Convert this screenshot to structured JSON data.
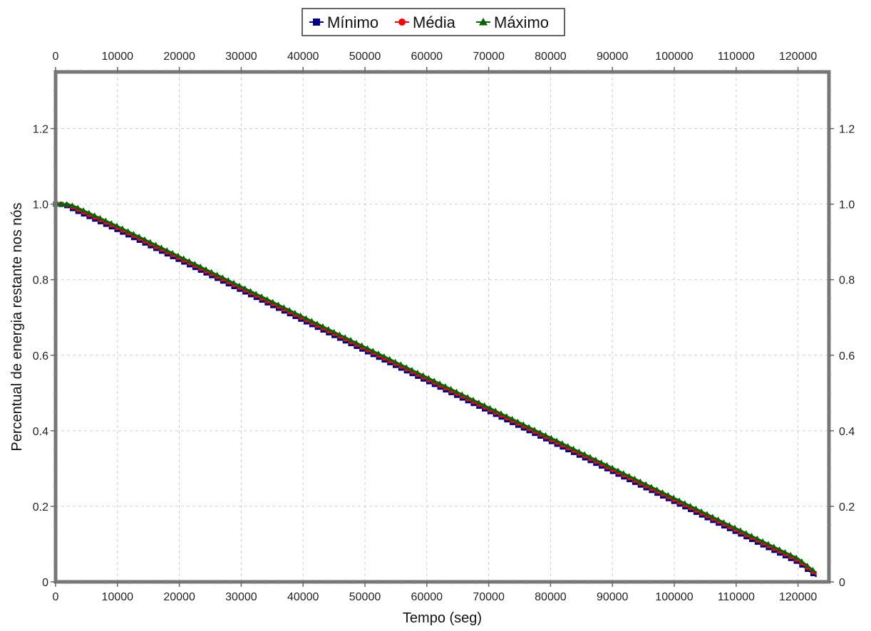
{
  "chart_data": {
    "type": "line",
    "title": "",
    "xlabel": "Tempo (seg)",
    "ylabel": "Percentual de energia restante nos nós",
    "xlim": [
      0,
      125000
    ],
    "ylim": [
      0,
      1.35
    ],
    "xticks": [
      0,
      10000,
      20000,
      30000,
      40000,
      50000,
      60000,
      70000,
      80000,
      90000,
      100000,
      110000,
      120000
    ],
    "xtick_labels": [
      "0",
      "10000",
      "20000",
      "30000",
      "40000",
      "50000",
      "60000",
      "70000",
      "80000",
      "90000",
      "100000",
      "110000",
      "120000"
    ],
    "yticks": [
      0,
      0.2,
      0.4,
      0.6,
      0.8,
      1.0,
      1.2
    ],
    "ytick_labels": [
      "0",
      "0.2",
      "0.4",
      "0.6",
      "0.8",
      "1.0",
      "1.2"
    ],
    "grid": true,
    "legend_position": "top-center",
    "x": [
      0,
      1000,
      2000,
      3000,
      5000,
      10000,
      20000,
      30000,
      40000,
      50000,
      60000,
      70000,
      80000,
      90000,
      100000,
      110000,
      120000,
      123000
    ],
    "series": [
      {
        "name": "Mínimo",
        "color": "#00008b",
        "marker": "square",
        "values": [
          1.0,
          0.999,
          0.995,
          0.985,
          0.97,
          0.932,
          0.852,
          0.772,
          0.692,
          0.612,
          0.532,
          0.452,
          0.372,
          0.292,
          0.212,
          0.132,
          0.052,
          0.014
        ]
      },
      {
        "name": "Média",
        "color": "#ff0000",
        "marker": "circle",
        "values": [
          1.0,
          1.0,
          0.998,
          0.99,
          0.975,
          0.937,
          0.857,
          0.777,
          0.697,
          0.617,
          0.537,
          0.457,
          0.377,
          0.297,
          0.217,
          0.137,
          0.057,
          0.019
        ]
      },
      {
        "name": "Máximo",
        "color": "#006400",
        "marker": "triangle",
        "values": [
          1.0,
          1.0,
          1.0,
          0.995,
          0.98,
          0.942,
          0.862,
          0.782,
          0.702,
          0.622,
          0.542,
          0.462,
          0.382,
          0.302,
          0.222,
          0.142,
          0.062,
          0.024
        ]
      }
    ]
  }
}
